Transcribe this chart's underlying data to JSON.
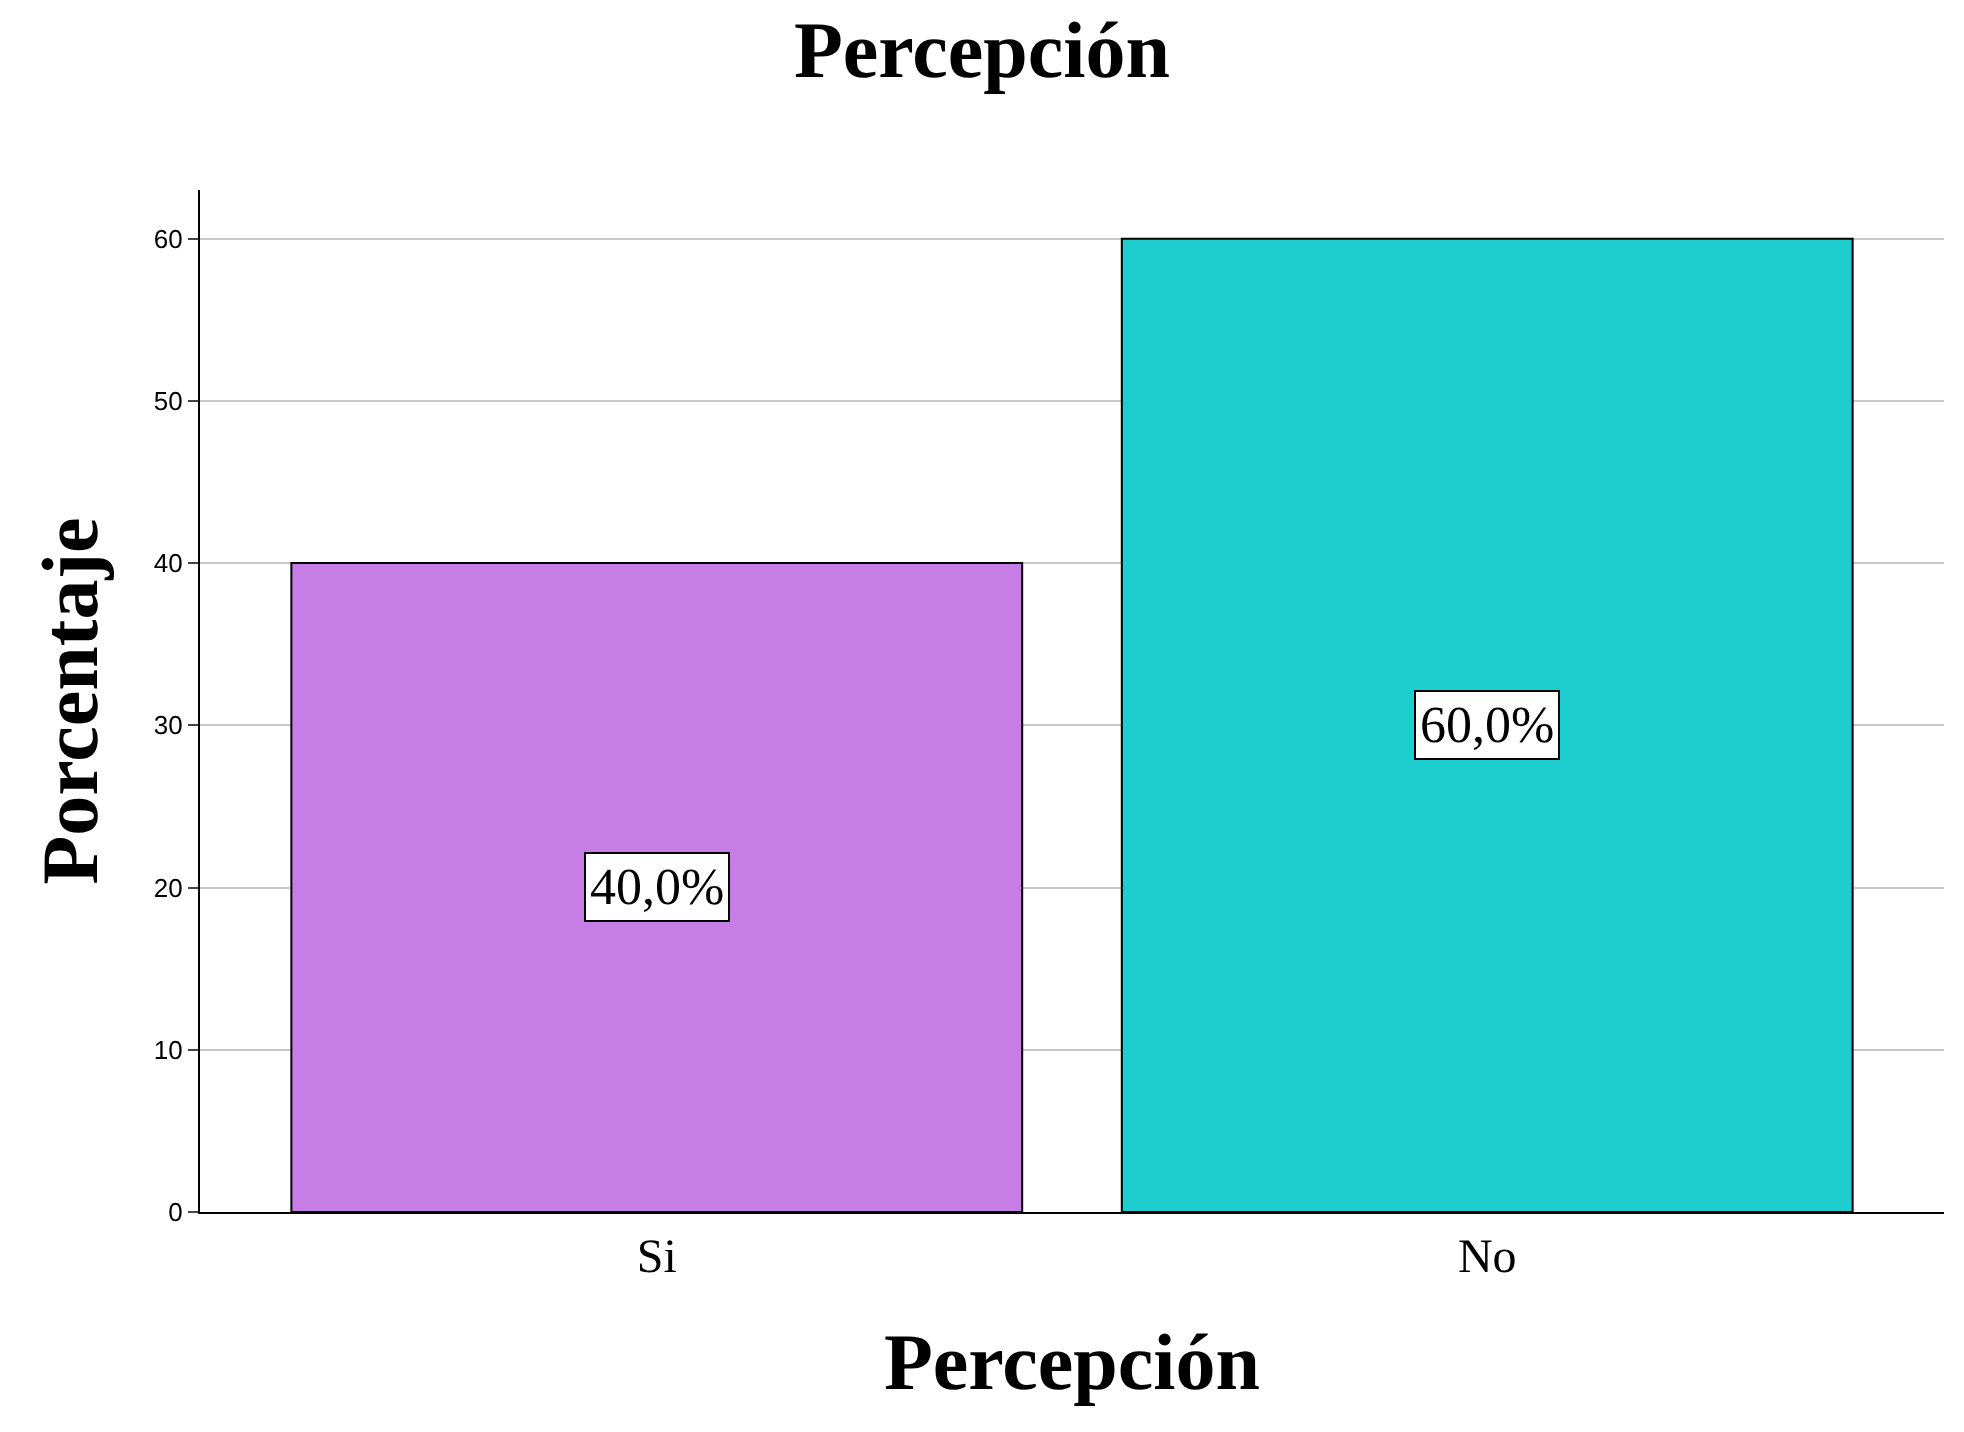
{
  "chart_data": {
    "type": "bar",
    "title": "Percepción",
    "xlabel": "Percepción",
    "ylabel": "Porcentaje",
    "categories": [
      "Si",
      "No"
    ],
    "values": [
      40,
      60
    ],
    "colors": [
      "#c77de6",
      "#1ecece"
    ],
    "value_labels": [
      "40,0%",
      "60,0%"
    ],
    "ylim": [
      0,
      63
    ],
    "yticks": [
      0,
      10,
      20,
      30,
      40,
      50,
      60
    ],
    "grid": "y",
    "legend": false
  }
}
